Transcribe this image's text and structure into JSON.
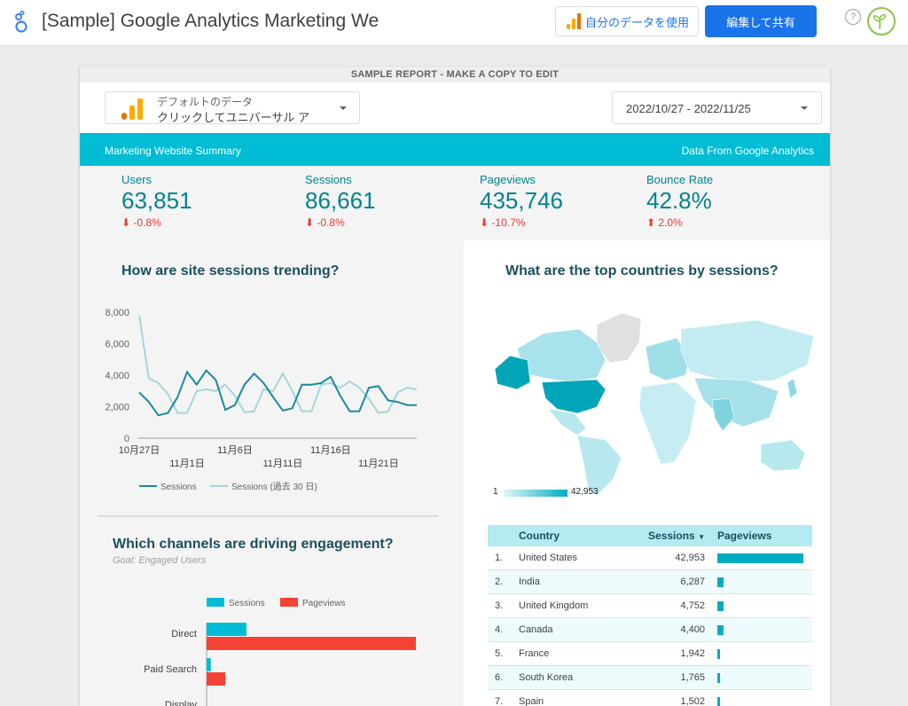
{
  "app": {
    "title": "[Sample] Google Analytics Marketing We",
    "use_own_data": "自分のデータを使用",
    "edit_share": "編集して共有",
    "help": "?"
  },
  "report": {
    "banner": "SAMPLE REPORT - MAKE A COPY TO EDIT",
    "data_source": {
      "line1": "デフォルトのデータ",
      "line2": "クリックしてユニバーサル ア"
    },
    "date_range": "2022/10/27 - 2022/11/25",
    "header_left": "Marketing Website Summary",
    "header_right": "Data From Google Analytics",
    "kpis": [
      {
        "label": "Users",
        "value": "63,851",
        "delta": "-0.8%",
        "direction": "down"
      },
      {
        "label": "Sessions",
        "value": "86,661",
        "delta": "-0.8%",
        "direction": "down"
      },
      {
        "label": "Pageviews",
        "value": "435,746",
        "delta": "-10.7%",
        "direction": "down"
      },
      {
        "label": "Bounce Rate",
        "value": "42.8%",
        "delta": "2.0%",
        "direction": "up"
      }
    ],
    "trend_title": "How are site sessions trending?",
    "map_title": "What are the top countries by sessions?",
    "map_legend": {
      "min": "1",
      "max": "42,953"
    },
    "channels_title": "Which channels are driving engagement?",
    "channels_subtitle": "Goal: Engaged Users",
    "table": {
      "headers": {
        "country": "Country",
        "sessions": "Sessions",
        "pageviews": "Pageviews"
      },
      "rows": [
        {
          "num": "1.",
          "country": "United States",
          "sessions": "42,953",
          "pv_share": 1.0
        },
        {
          "num": "2.",
          "country": "India",
          "sessions": "6,287",
          "pv_share": 0.07
        },
        {
          "num": "3.",
          "country": "United Kingdom",
          "sessions": "4,752",
          "pv_share": 0.07
        },
        {
          "num": "4.",
          "country": "Canada",
          "sessions": "4,400",
          "pv_share": 0.07
        },
        {
          "num": "5.",
          "country": "France",
          "sessions": "1,942",
          "pv_share": 0.02
        },
        {
          "num": "6.",
          "country": "South Korea",
          "sessions": "1,765",
          "pv_share": 0.02
        },
        {
          "num": "7.",
          "country": "Spain",
          "sessions": "1,502",
          "pv_share": 0.02
        }
      ]
    }
  },
  "colors": {
    "accent": "#00bcd4",
    "teal_dark": "#00838f",
    "primary": "#1a73e8",
    "negative": "#e53935",
    "pageviews": "#f44336",
    "sessions_prev": "#a5d6d9",
    "sessions": "#1b8a9a"
  },
  "chart_data": [
    {
      "type": "line",
      "title": "How are site sessions trending?",
      "x_tick_labels": [
        "10月27日",
        "11月1日",
        "11月6日",
        "11月11日",
        "11月16日",
        "11月21日"
      ],
      "y_tick_labels": [
        "8,000",
        "6,000",
        "4,000",
        "2,000",
        "0"
      ],
      "ylim": [
        0,
        8000
      ],
      "legend": "bottom",
      "series": [
        {
          "name": "Sessions",
          "values": [
            2900,
            2300,
            1450,
            1600,
            2600,
            4200,
            3400,
            4300,
            3700,
            1800,
            2100,
            3400,
            4100,
            3500,
            2600,
            1750,
            1900,
            3400,
            3400,
            3500,
            3900,
            2700,
            1700,
            1700,
            3200,
            3300,
            2400,
            2300,
            2100,
            2100
          ]
        },
        {
          "name": "Sessions (過去 30 日)",
          "values": [
            7800,
            3800,
            3500,
            2800,
            1600,
            1600,
            3000,
            3100,
            3000,
            3400,
            2700,
            1650,
            1700,
            3100,
            3000,
            4100,
            3000,
            1700,
            1700,
            3400,
            3500,
            3200,
            3600,
            3200,
            2500,
            1600,
            1700,
            2900,
            3200,
            3100
          ]
        }
      ]
    },
    {
      "type": "bar",
      "title": "Which channels are driving engagement?",
      "categories": [
        "Direct",
        "Paid Search",
        "Display"
      ],
      "series": [
        {
          "name": "Sessions",
          "values": [
            19,
            2,
            0
          ]
        },
        {
          "name": "Pageviews",
          "values": [
            100,
            9,
            0
          ]
        }
      ]
    }
  ]
}
